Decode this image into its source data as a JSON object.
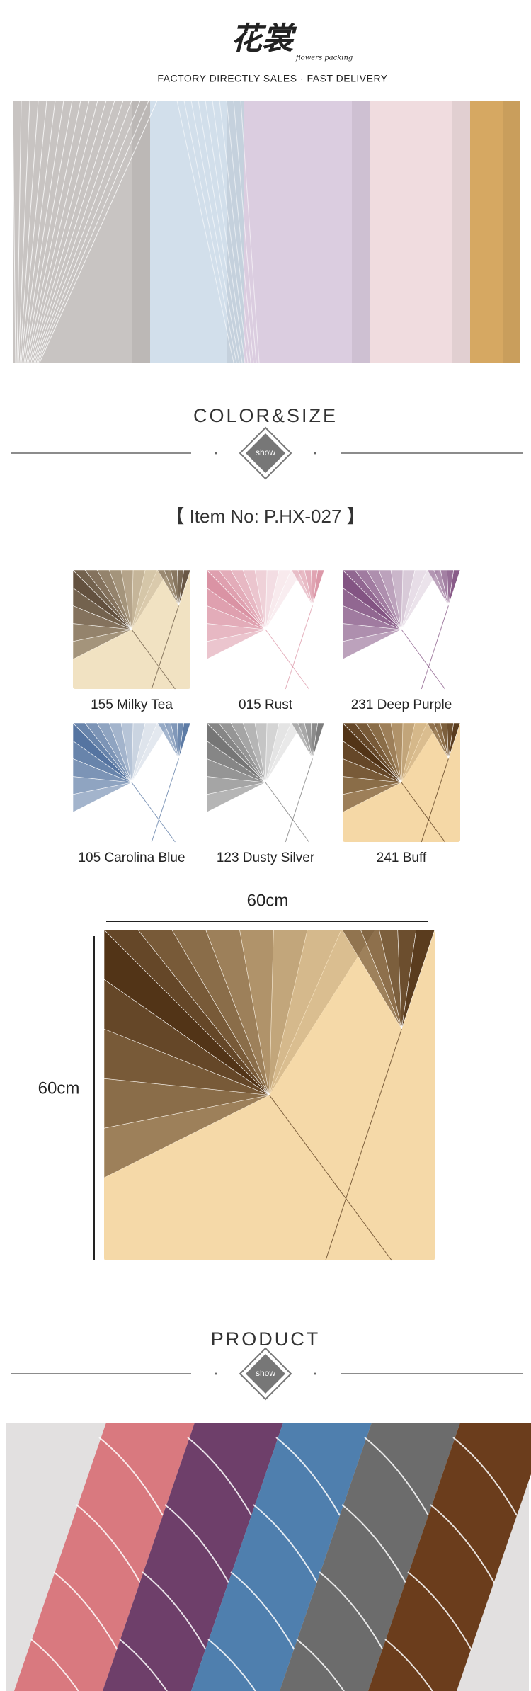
{
  "header": {
    "logo": "花裳",
    "logo_sub": "flowers packing",
    "tagline": "FACTORY DIRECTLY SALES · FAST DELIVERY"
  },
  "color_size": {
    "title": "COLOR&SIZE",
    "badge": "show",
    "item_no": "【 Item No: P.HX-027 】",
    "swatches": [
      "155 Milky Tea",
      "015 Rust",
      "231 Deep Purple",
      "105 Carolina Blue",
      "123 Dusty Silver",
      "241 Buff"
    ],
    "width_label": "60cm",
    "height_label": "60cm"
  },
  "product": {
    "title": "PRODUCT",
    "badge": "show"
  }
}
